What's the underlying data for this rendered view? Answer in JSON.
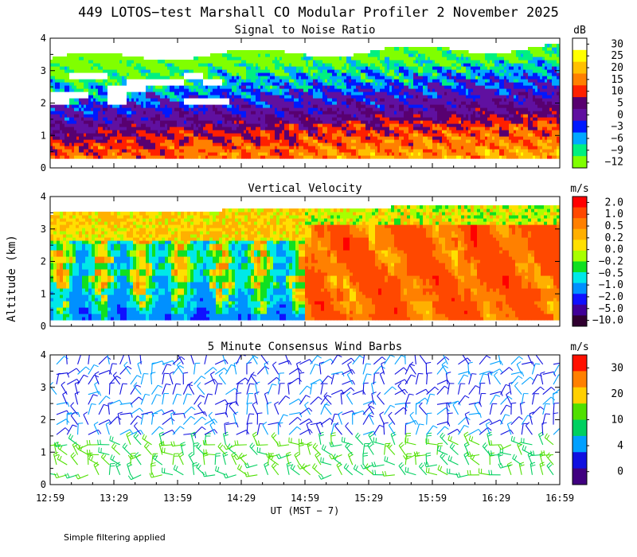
{
  "figure": {
    "title": "449 LOTOS−test Marshall CO Modular Profiler  2 November 2025",
    "ylabel": "Altitude (km)",
    "xlabel": "UT  (MST − 7)",
    "footnote": "Simple filtering applied"
  },
  "chart_data": [
    {
      "type": "heatmap",
      "title": "Signal to Noise Ratio",
      "xlabel": "UT  (MST − 7)",
      "ylabel": "Altitude (km)",
      "x_ticks": [
        "12:59",
        "13:29",
        "13:59",
        "14:29",
        "14:59",
        "15:29",
        "15:59",
        "16:29",
        "16:59"
      ],
      "y_ticks": [
        "0",
        "1",
        "2",
        "3",
        "4"
      ],
      "xlim": [
        "12:59",
        "16:59"
      ],
      "ylim": [
        0,
        4
      ],
      "colorbar": {
        "unit": "dB",
        "labels": [
          "30",
          "25",
          "20",
          "15",
          "10",
          "5",
          "0",
          "−3",
          "−6",
          "−9",
          "−12"
        ],
        "colors": [
          "#ffffff",
          "#ffff00",
          "#ffc000",
          "#ff8000",
          "#ff2000",
          "#580070",
          "#6010a0",
          "#0018ff",
          "#00a8ff",
          "#00f080",
          "#80ff00"
        ]
      },
      "description_levels": [
        {
          "altitude_km": 0.5,
          "snr_db": 12
        },
        {
          "altitude_km": 1.0,
          "snr_db": 7
        },
        {
          "altitude_km": 1.5,
          "snr_db": 2
        },
        {
          "altitude_km": 2.0,
          "snr_db": -2
        },
        {
          "altitude_km": 2.5,
          "snr_db": -6
        },
        {
          "altitude_km": 3.0,
          "snr_db": -9
        },
        {
          "altitude_km": 3.5,
          "snr_db": -12
        }
      ]
    },
    {
      "type": "heatmap",
      "title": "Vertical Velocity",
      "xlabel": "UT  (MST − 7)",
      "ylabel": "Altitude (km)",
      "x_ticks": [
        "12:59",
        "13:29",
        "13:59",
        "14:29",
        "14:59",
        "15:29",
        "15:59",
        "16:29",
        "16:59"
      ],
      "y_ticks": [
        "0",
        "1",
        "2",
        "3",
        "4"
      ],
      "xlim": [
        "12:59",
        "16:59"
      ],
      "ylim": [
        0,
        4
      ],
      "colorbar": {
        "unit": "m/s",
        "labels": [
          "2.0",
          "1.0",
          "0.5",
          "0.2",
          "0.0",
          "−0.2",
          "−0.5",
          "−1.0",
          "−2.0",
          "−5.0",
          "−10.0"
        ],
        "colors": [
          "#ff0000",
          "#ff4800",
          "#ff8000",
          "#ffb000",
          "#ffe000",
          "#a8ff00",
          "#10e020",
          "#00e8e8",
          "#0090ff",
          "#1010ff",
          "#400098",
          "#300030"
        ]
      },
      "summary": [
        {
          "period": "12:59–14:59",
          "w_ms": -0.5
        },
        {
          "period": "14:59–16:59",
          "w_ms": 0.5
        }
      ]
    },
    {
      "type": "wind_barbs",
      "title": "5 Minute Consensus Wind Barbs",
      "xlabel": "UT  (MST − 7)",
      "ylabel": "Altitude (km)",
      "x_ticks": [
        "12:59",
        "13:29",
        "13:59",
        "14:29",
        "14:59",
        "15:29",
        "15:59",
        "16:29",
        "16:59"
      ],
      "y_ticks": [
        "0",
        "1",
        "2",
        "3",
        "4"
      ],
      "xlim": [
        "12:59",
        "16:59"
      ],
      "ylim": [
        0,
        4
      ],
      "colorbar": {
        "unit": "m/s",
        "labels": [
          "30",
          "20",
          "10",
          "4",
          "0"
        ],
        "colors": [
          "#ff1000",
          "#ff8000",
          "#ffd000",
          "#50e000",
          "#00d060",
          "#00a0ff",
          "#1010e0",
          "#400080"
        ]
      },
      "summary": [
        {
          "altitude_km": 0.5,
          "speed_ms": 8
        },
        {
          "altitude_km": 1.0,
          "speed_ms": 8
        },
        {
          "altitude_km": 2.5,
          "speed_ms": 3
        },
        {
          "altitude_km": 3.5,
          "speed_ms": 4
        }
      ]
    }
  ]
}
